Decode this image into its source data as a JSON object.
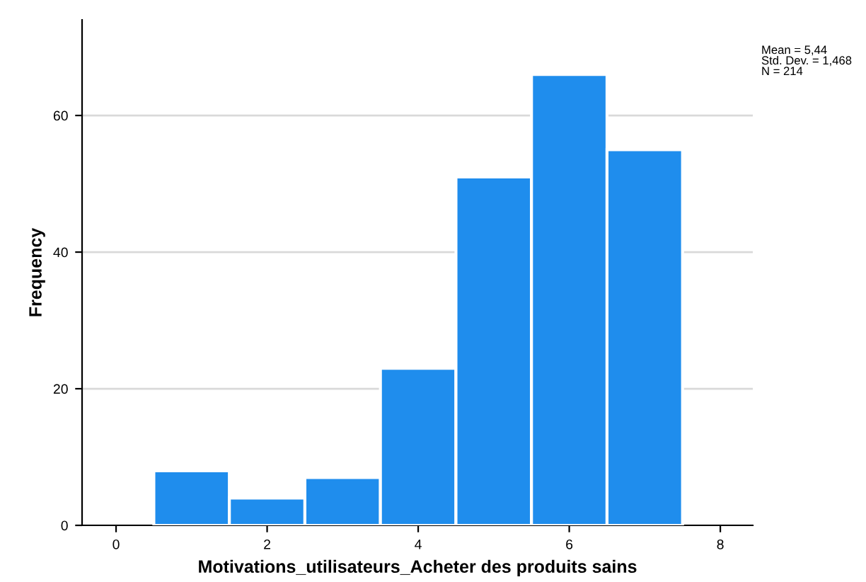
{
  "chart_data": {
    "type": "histogram",
    "xlabel": "Motivations_utilisateurs_Acheter des produits sains",
    "ylabel": "Frequency",
    "bins": [
      0.5,
      1.5,
      2.5,
      3.5,
      4.5,
      5.5,
      6.5,
      7.5
    ],
    "values": [
      8,
      4,
      7,
      23,
      51,
      66,
      55
    ],
    "color": "#1f8ded",
    "xlim": [
      -0.45,
      8.43
    ],
    "xticks": [
      0,
      2,
      4,
      6,
      8
    ],
    "ylim": [
      0,
      74
    ],
    "yticks": [
      0,
      20,
      40,
      60
    ],
    "grid": "y",
    "annotations": [
      "Mean = 5,44\nStd. Dev. = 1,468\nN = 214"
    ]
  }
}
